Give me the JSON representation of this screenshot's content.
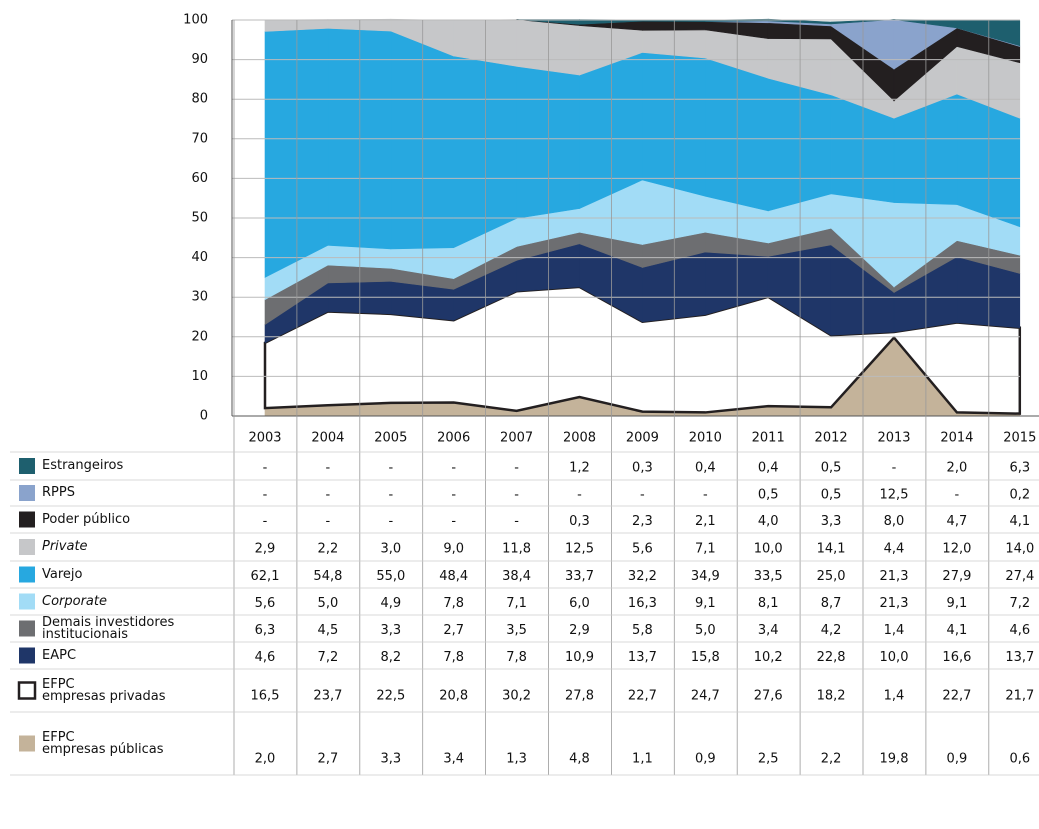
{
  "chart_data": {
    "type": "area",
    "stacked": true,
    "categories": [
      "2003",
      "2004",
      "2005",
      "2006",
      "2007",
      "2008",
      "2009",
      "2010",
      "2011",
      "2012",
      "2013",
      "2014",
      "2015"
    ],
    "ylim": [
      0,
      100
    ],
    "yticks": [
      0,
      10,
      20,
      30,
      40,
      50,
      60,
      70,
      80,
      90,
      100
    ],
    "grid": true,
    "series": [
      {
        "name": "Estrangeiros",
        "color": "#1e5f6e",
        "values": [
          null,
          null,
          null,
          null,
          null,
          1.2,
          0.3,
          0.4,
          0.4,
          0.5,
          null,
          2.0,
          6.3
        ],
        "value_labels": [
          "-",
          "-",
          "-",
          "-",
          "-",
          "1,2",
          "0,3",
          "0,4",
          "0,4",
          "0,5",
          "-",
          "2,0",
          "6,3"
        ]
      },
      {
        "name": "RPPS",
        "color": "#8aa3cc",
        "values": [
          null,
          null,
          null,
          null,
          null,
          null,
          null,
          null,
          0.5,
          0.5,
          12.5,
          null,
          0.2
        ],
        "value_labels": [
          "-",
          "-",
          "-",
          "-",
          "-",
          "-",
          "-",
          "-",
          "0,5",
          "0,5",
          "12,5",
          "-",
          "0,2"
        ]
      },
      {
        "name": "Poder público",
        "color": "#231f20",
        "values": [
          null,
          null,
          null,
          null,
          null,
          0.3,
          2.3,
          2.1,
          4.0,
          3.3,
          8.0,
          4.7,
          4.1
        ],
        "value_labels": [
          "-",
          "-",
          "-",
          "-",
          "-",
          "0,3",
          "2,3",
          "2,1",
          "4,0",
          "3,3",
          "8,0",
          "4,7",
          "4,1"
        ]
      },
      {
        "name": "Private",
        "color": "#c6c7c9",
        "font_style": "italic",
        "values": [
          2.9,
          2.2,
          3.0,
          9.0,
          11.8,
          12.5,
          5.6,
          7.1,
          10.0,
          14.1,
          4.4,
          12.0,
          14.0
        ],
        "value_labels": [
          "2,9",
          "2,2",
          "3,0",
          "9,0",
          "11,8",
          "12,5",
          "5,6",
          "7,1",
          "10,0",
          "14,1",
          "4,4",
          "12,0",
          "14,0"
        ]
      },
      {
        "name": "Varejo",
        "color": "#27a8e0",
        "values": [
          62.1,
          54.8,
          55.0,
          48.4,
          38.4,
          33.7,
          32.2,
          34.9,
          33.5,
          25.0,
          21.3,
          27.9,
          27.4
        ],
        "value_labels": [
          "62,1",
          "54,8",
          "55,0",
          "48,4",
          "38,4",
          "33,7",
          "32,2",
          "34,9",
          "33,5",
          "25,0",
          "21,3",
          "27,9",
          "27,4"
        ]
      },
      {
        "name": "Corporate",
        "color": "#a2dcf6",
        "font_style": "italic",
        "values": [
          5.6,
          5.0,
          4.9,
          7.8,
          7.1,
          6.0,
          16.3,
          9.1,
          8.1,
          8.7,
          21.3,
          9.1,
          7.2
        ],
        "value_labels": [
          "5,6",
          "5,0",
          "4,9",
          "7,8",
          "7,1",
          "6,0",
          "16,3",
          "9,1",
          "8,1",
          "8,7",
          "21,3",
          "9,1",
          "7,2"
        ]
      },
      {
        "name": "Demais investidores\ninstitucionais",
        "color": "#6d6e71",
        "values": [
          6.3,
          4.5,
          3.3,
          2.7,
          3.5,
          2.9,
          5.8,
          5.0,
          3.4,
          4.2,
          1.4,
          4.1,
          4.6
        ],
        "value_labels": [
          "6,3",
          "4,5",
          "3,3",
          "2,7",
          "3,5",
          "2,9",
          "5,8",
          "5,0",
          "3,4",
          "4,2",
          "1,4",
          "4,1",
          "4,6"
        ]
      },
      {
        "name": "EAPC",
        "color": "#1f3668",
        "values": [
          4.6,
          7.2,
          8.2,
          7.8,
          7.8,
          10.9,
          13.7,
          15.8,
          10.2,
          22.8,
          10.0,
          16.6,
          13.7
        ],
        "value_labels": [
          "4,6",
          "7,2",
          "8,2",
          "7,8",
          "7,8",
          "10,9",
          "13,7",
          "15,8",
          "10,2",
          "22,8",
          "10,0",
          "16,6",
          "13,7"
        ]
      },
      {
        "name": "EFPC\nempresas privadas",
        "color": "#ffffff",
        "outline": "#231f20",
        "values": [
          16.5,
          23.7,
          22.5,
          20.8,
          30.2,
          27.8,
          22.7,
          24.7,
          27.6,
          18.2,
          1.4,
          22.7,
          21.7
        ],
        "value_labels": [
          "16,5",
          "23,7",
          "22,5",
          "20,8",
          "30,2",
          "27,8",
          "22,7",
          "24,7",
          "27,6",
          "18,2",
          "1,4",
          "22,7",
          "21,7"
        ]
      },
      {
        "name": "EFPC\nempresas públicas",
        "color": "#c4b39a",
        "values": [
          2.0,
          2.7,
          3.3,
          3.4,
          1.3,
          4.8,
          1.1,
          0.9,
          2.5,
          2.2,
          19.8,
          0.9,
          0.6
        ],
        "value_labels": [
          "2,0",
          "2,7",
          "3,3",
          "3,4",
          "1,3",
          "4,8",
          "1,1",
          "0,9",
          "2,5",
          "2,2",
          "19,8",
          "0,9",
          "0,6"
        ]
      }
    ]
  }
}
